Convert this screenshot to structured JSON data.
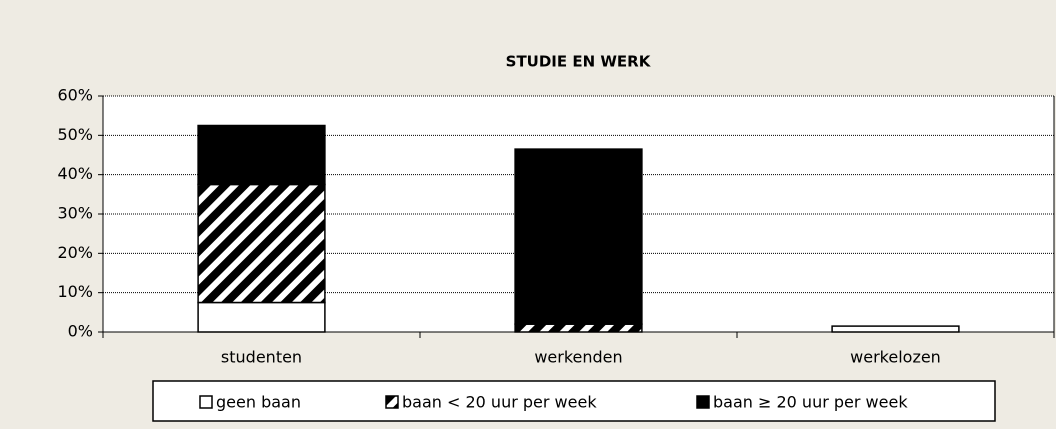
{
  "chart_data": {
    "type": "stacked_bar",
    "title": "STUDIE EN WERK",
    "categories": [
      "studenten",
      "werkenden",
      "werkelozen"
    ],
    "series": [
      {
        "name": "geen baan",
        "color": "#ffffff",
        "values": [
          7.5,
          0,
          1.5
        ]
      },
      {
        "name": "baan < 20 uur per week",
        "color": "#000000",
        "hatch": true,
        "values": [
          30,
          2,
          0
        ]
      },
      {
        "name": "baan ≥ 20 uur per week",
        "color": "#000000",
        "values": [
          15,
          44.5,
          0
        ]
      }
    ],
    "ylim": [
      0,
      60
    ],
    "yticks": [
      {
        "value": 0,
        "label": "0%"
      },
      {
        "value": 10,
        "label": "10%"
      },
      {
        "value": 20,
        "label": "20%"
      },
      {
        "value": 30,
        "label": "30%"
      },
      {
        "value": 40,
        "label": "40%"
      },
      {
        "value": 50,
        "label": "50%"
      },
      {
        "value": 60,
        "label": "60%"
      }
    ],
    "grid": true,
    "legend": "bottom"
  }
}
